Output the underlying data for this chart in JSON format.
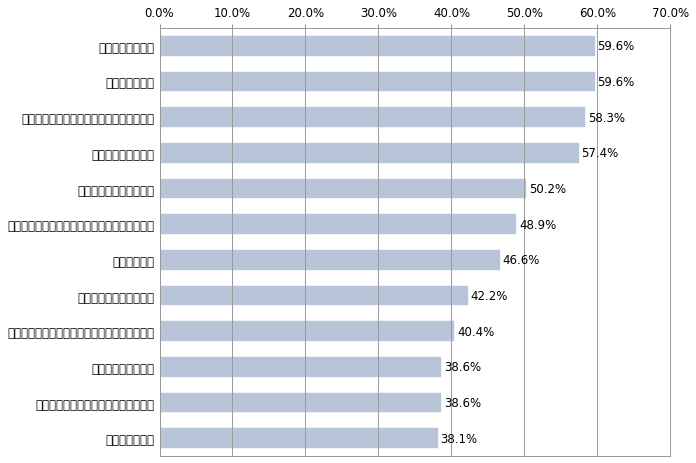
{
  "categories": [
    "データの暗号化",
    "端末へのデータダウンロード制限機能",
    "データ通信の暗号化",
    "社内ネットワーク接続時の強固なユーザー認証",
    "スクリーンセイバー機能",
    "外部接続制限",
    "機能（カメラ、ワンセグ等）の利用制限・禁止",
    "インターネット利用制限",
    "遠隔データ消去機能",
    "アプリケーションのインストール機能制限",
    "遠隔ロック機能",
    "データの保管制限"
  ],
  "values": [
    38.1,
    38.6,
    38.6,
    40.4,
    42.2,
    46.6,
    48.9,
    50.2,
    57.4,
    58.3,
    59.6,
    59.6
  ],
  "bar_color": "#b8c4d8",
  "bar_edge_color": "#b8c4d8",
  "value_labels": [
    "38.1%",
    "38.6%",
    "38.6%",
    "40.4%",
    "42.2%",
    "46.6%",
    "48.9%",
    "50.2%",
    "57.4%",
    "58.3%",
    "59.6%",
    "59.6%"
  ],
  "xlim": [
    0,
    70
  ],
  "xticks": [
    0,
    10,
    20,
    30,
    40,
    50,
    60,
    70
  ],
  "xticklabels": [
    "0.0%",
    "10.0%",
    "20.0%",
    "30.0%",
    "40.0%",
    "50.0%",
    "60.0%",
    "70.0%"
  ],
  "grid_color": "#999999",
  "background_color": "#ffffff",
  "label_fontsize": 8.5,
  "value_fontsize": 8.5,
  "tick_fontsize": 8.5,
  "bar_height": 0.55
}
